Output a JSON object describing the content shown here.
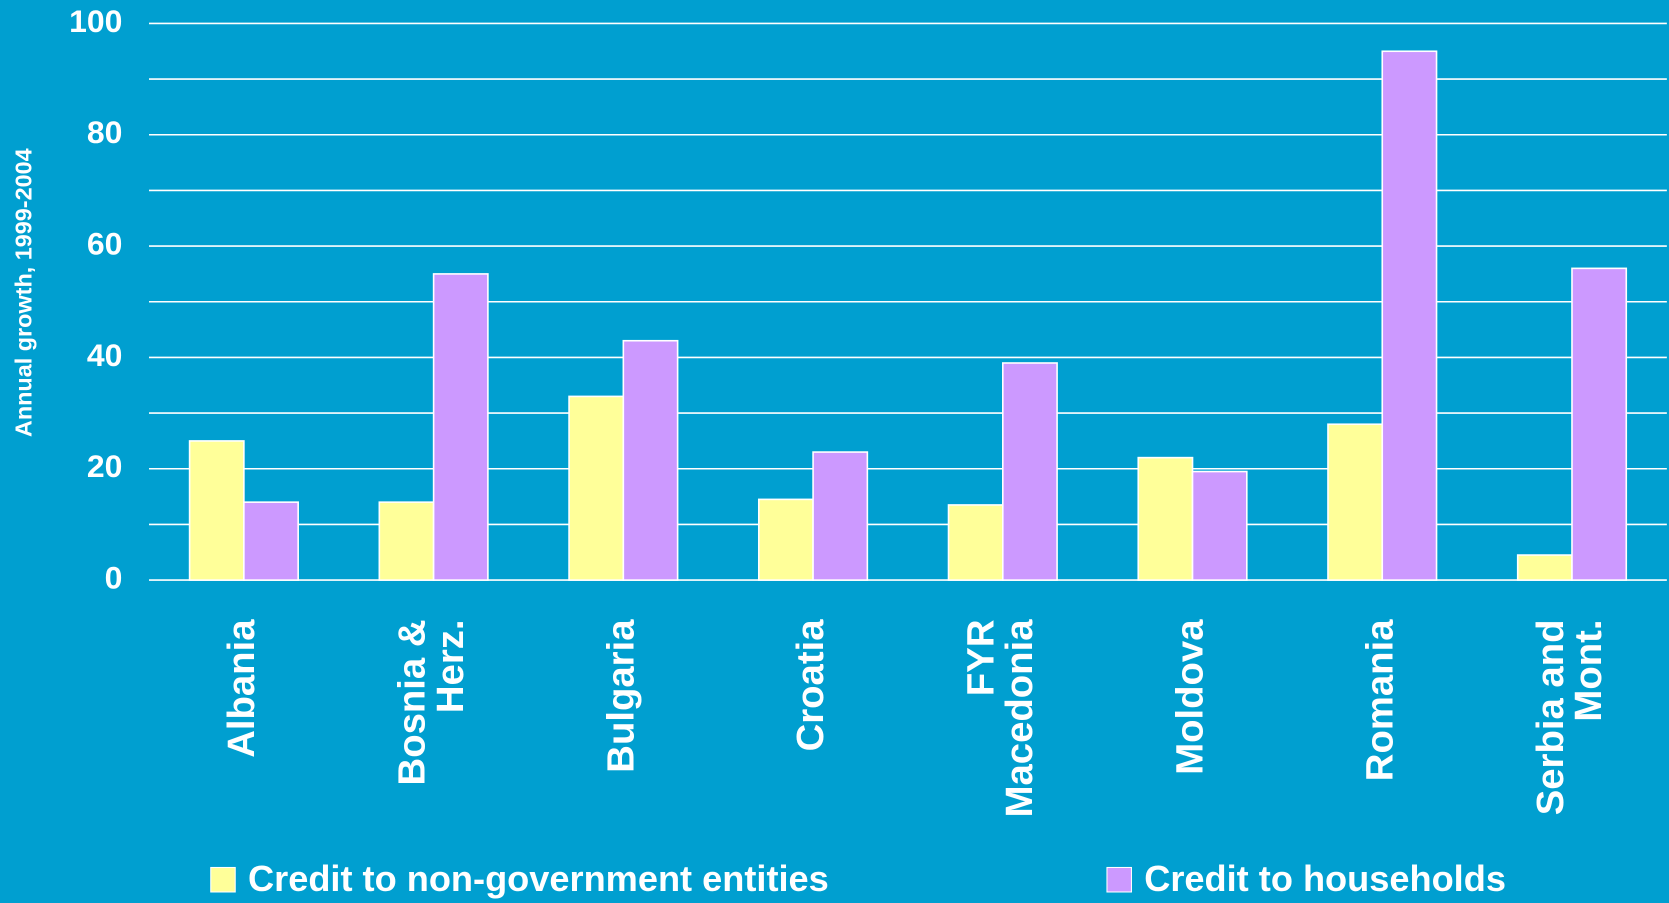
{
  "chart_data": {
    "type": "bar",
    "y_label": "Annual growth, 1999-2004",
    "categories": [
      "Albania",
      "Bosnia &\nHerz.",
      "Bulgaria",
      "Croatia",
      "FYR\nMacedonia",
      "Moldova",
      "Romania",
      "Serbia and\nMont."
    ],
    "series": [
      {
        "name": "Credit to non-government entities",
        "color": "#ffff99",
        "values": [
          25,
          14,
          33,
          14.5,
          13.5,
          22,
          28,
          4.5
        ]
      },
      {
        "name": "Credit to households",
        "color": "#cc99ff",
        "values": [
          14,
          55,
          43,
          23,
          39,
          19.5,
          95,
          56
        ]
      }
    ],
    "ylim": [
      0,
      100
    ],
    "yticks": [
      0,
      20,
      40,
      60,
      80,
      100
    ],
    "minor_yticks": [
      10,
      30,
      50,
      70,
      90
    ],
    "grid": true
  }
}
